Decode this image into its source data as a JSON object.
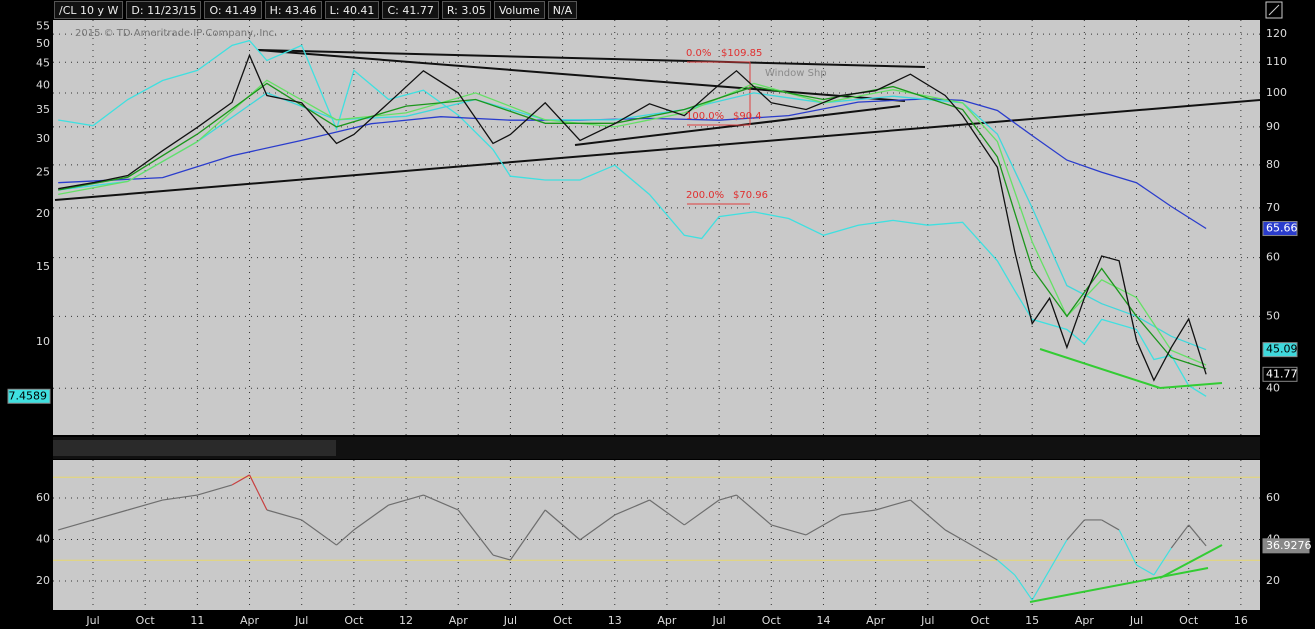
{
  "header": {
    "items": [
      "/CL 10 y W",
      "D: 11/23/15",
      "O: 41.49",
      "H: 43.46",
      "L: 40.41",
      "C: 41.77",
      "R: 3.05",
      "Volume",
      "N/A"
    ]
  },
  "chart_data": [
    {
      "type": "line",
      "copyright": "2015 © TD Ameritrade IP Company, Inc.",
      "annotations": [
        "0.0%",
        "$109.85",
        "100.0%",
        "$90.4",
        "200.0%",
        "$70.96",
        "Window Shp"
      ],
      "log_scale": true,
      "grid": true,
      "xlim": [
        -2.3,
        67.1
      ],
      "ylim": [
        34.6,
        125.4
      ],
      "yticks": [
        40,
        50,
        60,
        70,
        80,
        90,
        100,
        110,
        120
      ],
      "y2lim": [
        6.05,
        57
      ],
      "y2ticks": [
        10,
        15,
        20,
        25,
        30,
        35,
        40,
        45,
        50,
        55
      ],
      "series": [
        {
          "color": "#3fe0e0",
          "axis": "y2",
          "x": [
            -2,
            0,
            2,
            4,
            6,
            8,
            9,
            10,
            12,
            14,
            15,
            17,
            19,
            21,
            23,
            24,
            26,
            28,
            30,
            32,
            34,
            35,
            36,
            38,
            40,
            42,
            44,
            46,
            48,
            50,
            52,
            53,
            54,
            56,
            57,
            58,
            60,
            61,
            62,
            63,
            64
          ],
          "values": [
            33.2,
            32.2,
            37.1,
            41.1,
            43.4,
            49.7,
            51,
            45.8,
            49.7,
            31.6,
            43.4,
            37.1,
            39.0,
            34.1,
            28.3,
            24.5,
            24,
            24,
            26.0,
            22.2,
            17.8,
            17.5,
            19.7,
            20.2,
            19.5,
            17.8,
            18.8,
            19.3,
            18.8,
            19.1,
            15.5,
            13.2,
            11.3,
            10.7,
            9.9,
            11.3,
            10.7,
            9.1,
            9.3,
            7.9,
            7.4589
          ]
        },
        {
          "color": "#2a3ccc",
          "x": [
            -2,
            4,
            8,
            12,
            16,
            20,
            24,
            28,
            32,
            36,
            40,
            44,
            48,
            50,
            52,
            54,
            56,
            58,
            60,
            62,
            64
          ],
          "values": [
            75.7,
            76.9,
            82.3,
            86.3,
            90.9,
            92.9,
            91.9,
            91.9,
            92.4,
            91.9,
            93.2,
            97.2,
            98.2,
            97.7,
            94.7,
            87.6,
            81.2,
            78.2,
            75.7,
            70.3,
            65.66
          ]
        },
        {
          "color": "#3fd8dc",
          "x": [
            -2,
            2,
            6,
            10,
            14,
            18,
            22,
            26,
            30,
            34,
            38,
            42,
            46,
            50,
            52,
            54,
            56,
            58,
            60,
            62,
            64
          ],
          "values": [
            74,
            76,
            86,
            100,
            92,
            93,
            98,
            92,
            92,
            95,
            100,
            97,
            99,
            97,
            88,
            70,
            55,
            52,
            50,
            47,
            45.09
          ]
        },
        {
          "color": "#66e066",
          "x": [
            -2,
            2,
            6,
            10,
            14,
            18,
            22,
            26,
            30,
            34,
            38,
            42,
            46,
            50,
            52,
            54,
            56,
            58,
            60,
            62,
            64
          ],
          "values": [
            73,
            76,
            86,
            104,
            92,
            94,
            100,
            92,
            90,
            94,
            103,
            97,
            101,
            97,
            86,
            63,
            50,
            56,
            53,
            45,
            43
          ]
        },
        {
          "color": "#1c961c",
          "x": [
            -2,
            2,
            6,
            10,
            14,
            18,
            22,
            26,
            30,
            34,
            38,
            42,
            46,
            50,
            52,
            54,
            56,
            58,
            60,
            62,
            64
          ],
          "values": [
            74,
            77,
            88,
            103,
            90,
            96,
            98,
            91,
            91,
            95,
            102,
            98,
            102,
            95,
            82,
            58,
            50,
            58,
            50,
            44,
            42.5
          ]
        },
        {
          "color": "#111111",
          "x": [
            -2,
            0,
            2,
            4,
            6,
            8,
            9,
            10,
            12,
            14,
            15,
            17,
            19,
            21,
            23,
            24,
            26,
            28,
            30,
            32,
            34,
            36,
            37,
            39,
            41,
            43,
            45,
            47,
            49,
            50,
            52,
            53,
            54,
            55,
            56,
            57,
            58,
            59,
            60,
            61,
            62,
            63,
            64
          ],
          "values": [
            74.3,
            75.7,
            77.4,
            83.6,
            89.9,
            97.1,
            112.4,
            99.2,
            97,
            85.5,
            87.9,
            97,
            107.1,
            100,
            85.5,
            87.9,
            97,
            86.3,
            90.9,
            96.7,
            93.2,
            102.6,
            107.1,
            97,
            95,
            99.2,
            100.7,
            106,
            99.2,
            93.2,
            79.4,
            61.1,
            48.9,
            52.9,
            45.4,
            52.9,
            60.3,
            59.4,
            46.4,
            41,
            45.4,
            49.6,
            41.77
          ]
        }
      ]
    },
    {
      "type": "line",
      "grid": true,
      "xlim": [
        -2.3,
        67.1
      ],
      "xticks": [
        {
          "value": 0,
          "label": "Jul"
        },
        {
          "value": 3,
          "label": "Oct"
        },
        {
          "value": 6,
          "label": "11"
        },
        {
          "value": 9,
          "label": "Apr"
        },
        {
          "value": 12,
          "label": "Jul"
        },
        {
          "value": 15,
          "label": "Oct"
        },
        {
          "value": 18,
          "label": "12"
        },
        {
          "value": 21,
          "label": "Apr"
        },
        {
          "value": 24,
          "label": "Jul"
        },
        {
          "value": 27,
          "label": "Oct"
        },
        {
          "value": 30,
          "label": "13"
        },
        {
          "value": 33,
          "label": "Apr"
        },
        {
          "value": 36,
          "label": "Jul"
        },
        {
          "value": 39,
          "label": "Oct"
        },
        {
          "value": 42,
          "label": "14"
        },
        {
          "value": 45,
          "label": "Apr"
        },
        {
          "value": 48,
          "label": "Jul"
        },
        {
          "value": 51,
          "label": "Oct"
        },
        {
          "value": 54,
          "label": "15"
        },
        {
          "value": 57,
          "label": "Apr"
        },
        {
          "value": 60,
          "label": "Jul"
        },
        {
          "value": 63,
          "label": "Oct"
        },
        {
          "value": 66,
          "label": "16"
        }
      ],
      "ylim": [
        6,
        78.3
      ],
      "yticks": [
        20,
        40,
        60
      ],
      "overbought": 70,
      "oversold": 30,
      "level_color": "#e8d870",
      "overbought_color": "#c84040",
      "oversold_color": "#3fe0e0",
      "series": [
        {
          "color": "#6e6e6e",
          "x": [
            -2,
            0,
            2,
            4,
            6,
            8,
            9,
            10,
            12,
            14,
            15,
            17,
            19,
            21,
            23,
            24,
            26,
            28,
            30,
            32,
            34,
            36,
            37,
            39,
            41,
            43,
            45,
            47,
            49,
            50,
            52,
            53,
            54,
            55,
            56,
            57,
            58,
            59,
            60,
            61,
            62,
            63,
            64
          ],
          "values": [
            44.6,
            49.4,
            54.2,
            59,
            61.4,
            66.3,
            71.1,
            54.2,
            49.4,
            37.3,
            44.6,
            56.6,
            61.4,
            54.2,
            32.5,
            30.1,
            54.2,
            39.8,
            51.8,
            59,
            47,
            59,
            61.4,
            47,
            42.2,
            51.8,
            54.2,
            59,
            44.6,
            39.8,
            30.1,
            22.9,
            10.8,
            25.3,
            39.8,
            49.4,
            49.4,
            44.6,
            27.7,
            22.9,
            35.9,
            47,
            36.9276
          ]
        }
      ]
    }
  ]
}
